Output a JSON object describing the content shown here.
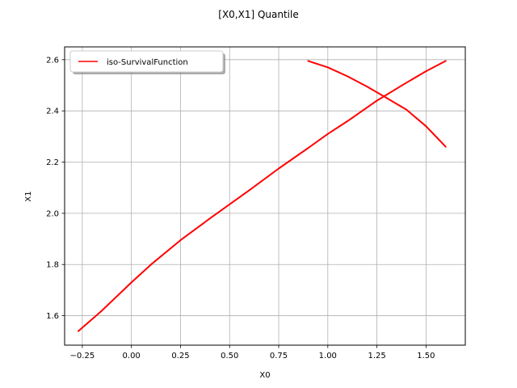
{
  "chart_data": {
    "type": "line",
    "title": "[X0,X1] Quantile",
    "xlabel": "X0",
    "ylabel": "X1",
    "xlim": [
      -0.34,
      1.7
    ],
    "ylim": [
      1.485,
      2.65
    ],
    "xticks": [
      -0.25,
      0.0,
      0.25,
      0.5,
      0.75,
      1.0,
      1.25,
      1.5
    ],
    "xtick_labels": [
      "−0.25",
      "0.00",
      "0.25",
      "0.50",
      "0.75",
      "1.00",
      "1.25",
      "1.50"
    ],
    "yticks": [
      1.6,
      1.8,
      2.0,
      2.2,
      2.4,
      2.6
    ],
    "ytick_labels": [
      "1.6",
      "1.8",
      "2.0",
      "2.2",
      "2.4",
      "2.6"
    ],
    "grid": true,
    "legend_position": "top-left",
    "series": [
      {
        "name": "iso-SurvivalFunction",
        "color": "#ff0000",
        "segments": [
          [
            [
              -0.27,
              1.54
            ],
            [
              -0.15,
              1.62
            ],
            [
              0.0,
              1.73
            ],
            [
              0.1,
              1.8
            ],
            [
              0.25,
              1.895
            ],
            [
              0.4,
              1.98
            ],
            [
              0.5,
              2.035
            ],
            [
              0.6,
              2.09
            ],
            [
              0.75,
              2.175
            ],
            [
              0.9,
              2.255
            ],
            [
              1.0,
              2.31
            ],
            [
              1.1,
              2.36
            ],
            [
              1.25,
              2.44
            ],
            [
              1.4,
              2.51
            ],
            [
              1.5,
              2.555
            ],
            [
              1.6,
              2.595
            ]
          ],
          [
            [
              0.9,
              2.595
            ],
            [
              1.0,
              2.57
            ],
            [
              1.1,
              2.535
            ],
            [
              1.2,
              2.495
            ],
            [
              1.3,
              2.45
            ],
            [
              1.4,
              2.405
            ],
            [
              1.5,
              2.34
            ],
            [
              1.6,
              2.26
            ]
          ]
        ]
      }
    ]
  }
}
